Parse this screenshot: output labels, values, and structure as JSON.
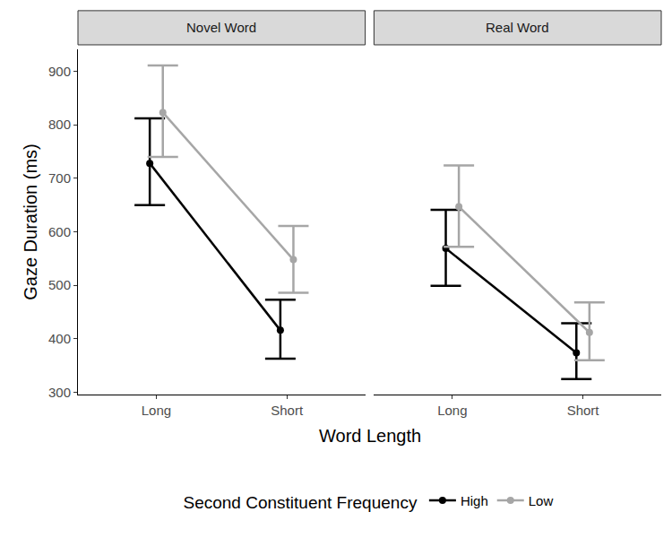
{
  "chart_data": {
    "type": "line",
    "x_label": "Word Length",
    "y_label": "Gaze Duration (ms)",
    "legend_title": "Second Constituent Frequency",
    "legend": "bottom",
    "grid": false,
    "marker": "circle",
    "categories": [
      "Long",
      "Short"
    ],
    "ylim": [
      296,
      941
    ],
    "yticks": [
      300,
      400,
      500,
      600,
      700,
      800,
      900
    ],
    "facets": [
      {
        "title": "Novel Word",
        "series": [
          {
            "name": "High",
            "color": "#000000",
            "values": [
              728,
              416
            ],
            "lower": [
              650,
              363
            ],
            "upper": [
              812,
              473
            ]
          },
          {
            "name": "Low",
            "color": "#A6A6A6",
            "values": [
              823,
              548
            ],
            "lower": [
              740,
              486
            ],
            "upper": [
              911,
              611
            ]
          }
        ]
      },
      {
        "title": "Real Word",
        "series": [
          {
            "name": "High",
            "color": "#000000",
            "values": [
              569,
              374
            ],
            "lower": [
              499,
              325
            ],
            "upper": [
              641,
              429
            ]
          },
          {
            "name": "Low",
            "color": "#A6A6A6",
            "values": [
              647,
              412
            ],
            "lower": [
              572,
              360
            ],
            "upper": [
              724,
              468
            ]
          }
        ]
      }
    ]
  }
}
